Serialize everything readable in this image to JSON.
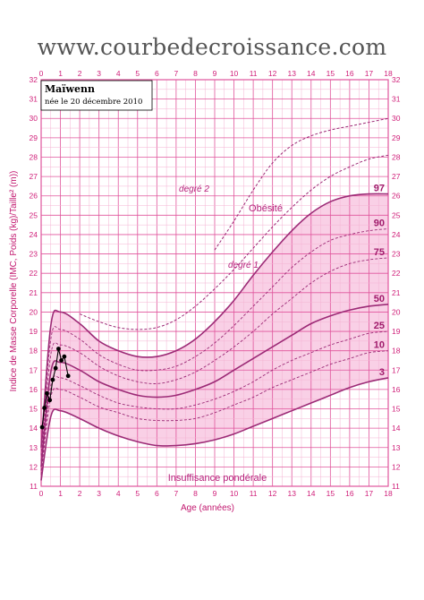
{
  "header": {
    "site_url": "www.courbedecroissance.com"
  },
  "patient": {
    "name": "Maïwenn",
    "birth": "née le 20 décembre 2010"
  },
  "colors": {
    "grid": "#e0559c",
    "grid_minor": "#f4b3d3",
    "curve": "#9c2a76",
    "band": "#f8c8e2",
    "point": "#000000"
  },
  "chart_data": {
    "type": "line",
    "title": "",
    "xlabel": "Age (années)",
    "ylabel": "Indice de Masse Corporelle (IMC, Poids (kg)/Taille² (m))",
    "xlim": [
      0,
      18
    ],
    "ylim": [
      11,
      32
    ],
    "x_ticks": [
      0,
      1,
      2,
      3,
      4,
      5,
      6,
      7,
      8,
      9,
      10,
      11,
      12,
      13,
      14,
      15,
      16,
      17,
      18
    ],
    "y_ticks": [
      11,
      12,
      13,
      14,
      15,
      16,
      17,
      18,
      19,
      20,
      21,
      22,
      23,
      24,
      25,
      26,
      27,
      28,
      29,
      30,
      31,
      32
    ],
    "zone_labels": {
      "obesity": "Obésité",
      "degree1": "degré 1",
      "degree2": "degré 2",
      "underweight": "Insuffisance pondérale"
    },
    "series": [
      {
        "name": "97",
        "x": [
          0,
          0.5,
          1,
          2,
          3,
          4,
          5,
          6,
          7,
          8,
          9,
          10,
          11,
          12,
          13,
          14,
          15,
          16,
          17,
          18
        ],
        "values": [
          13,
          19.3,
          20,
          19.4,
          18.5,
          18,
          17.7,
          17.7,
          18,
          18.6,
          19.5,
          20.6,
          21.9,
          23.1,
          24.2,
          25.1,
          25.7,
          26,
          26.1,
          26.1
        ]
      },
      {
        "name": "90",
        "x": [
          0,
          0.5,
          1,
          2,
          3,
          4,
          5,
          6,
          7,
          8,
          9,
          10,
          11,
          12,
          13,
          14,
          15,
          16,
          17,
          18
        ],
        "values": [
          12.6,
          18.6,
          19.1,
          18.6,
          17.8,
          17.3,
          17,
          17,
          17.2,
          17.7,
          18.4,
          19.3,
          20.3,
          21.3,
          22.3,
          23.1,
          23.7,
          24,
          24.2,
          24.3
        ]
      },
      {
        "name": "75",
        "x": [
          0,
          0.5,
          1,
          2,
          3,
          4,
          5,
          6,
          7,
          8,
          9,
          10,
          11,
          12,
          13,
          14,
          15,
          16,
          17,
          18
        ],
        "values": [
          12.3,
          17.8,
          18.3,
          17.9,
          17.2,
          16.7,
          16.4,
          16.3,
          16.5,
          16.9,
          17.5,
          18.2,
          19,
          19.9,
          20.7,
          21.5,
          22.1,
          22.5,
          22.7,
          22.8
        ]
      },
      {
        "name": "50",
        "x": [
          0,
          0.5,
          1,
          2,
          3,
          4,
          5,
          6,
          7,
          8,
          9,
          10,
          11,
          12,
          13,
          14,
          15,
          16,
          17,
          18
        ],
        "values": [
          12,
          16.9,
          17.4,
          17,
          16.4,
          16,
          15.7,
          15.6,
          15.7,
          16,
          16.4,
          17,
          17.6,
          18.2,
          18.8,
          19.4,
          19.8,
          20.1,
          20.3,
          20.4
        ]
      },
      {
        "name": "25",
        "x": [
          0,
          0.5,
          1,
          2,
          3,
          4,
          5,
          6,
          7,
          8,
          9,
          10,
          11,
          12,
          13,
          14,
          15,
          16,
          17,
          18
        ],
        "values": [
          11.8,
          16.2,
          16.6,
          16.2,
          15.7,
          15.3,
          15.1,
          15,
          15,
          15.2,
          15.5,
          15.9,
          16.4,
          17,
          17.5,
          17.9,
          18.3,
          18.6,
          18.9,
          19
        ]
      },
      {
        "name": "10",
        "x": [
          0,
          0.5,
          1,
          2,
          3,
          4,
          5,
          6,
          7,
          8,
          9,
          10,
          11,
          12,
          13,
          14,
          15,
          16,
          17,
          18
        ],
        "values": [
          11.6,
          15.6,
          16,
          15.6,
          15.1,
          14.8,
          14.5,
          14.4,
          14.4,
          14.5,
          14.8,
          15.2,
          15.6,
          16.1,
          16.5,
          16.9,
          17.3,
          17.6,
          17.9,
          18
        ]
      },
      {
        "name": "3",
        "x": [
          0,
          0.5,
          1,
          2,
          3,
          4,
          5,
          6,
          7,
          8,
          9,
          10,
          11,
          12,
          13,
          14,
          15,
          16,
          17,
          18
        ],
        "values": [
          11.3,
          14.6,
          14.9,
          14.5,
          14,
          13.6,
          13.3,
          13.1,
          13.1,
          13.2,
          13.4,
          13.7,
          14.1,
          14.5,
          14.9,
          15.3,
          15.7,
          16.1,
          16.4,
          16.6
        ]
      },
      {
        "name": "degré 1",
        "x": [
          2,
          3,
          4,
          5,
          6,
          7,
          8,
          9,
          10,
          11,
          12,
          13,
          14,
          15,
          16,
          17,
          18
        ],
        "values": [
          19.9,
          19.5,
          19.2,
          19.1,
          19.2,
          19.6,
          20.3,
          21.2,
          22.2,
          23.3,
          24.4,
          25.4,
          26.3,
          27,
          27.5,
          27.9,
          28.1
        ]
      },
      {
        "name": "degré 2",
        "x": [
          9,
          10,
          11,
          12,
          13,
          14,
          15,
          16,
          17,
          18
        ],
        "values": [
          23.2,
          24.7,
          26.3,
          27.7,
          28.6,
          29.1,
          29.4,
          29.6,
          29.8,
          30
        ]
      },
      {
        "name": "Maïwenn",
        "x": [
          0.05,
          0.17,
          0.3,
          0.45,
          0.6,
          0.75,
          0.9,
          1.05,
          1.2,
          1.4
        ],
        "values": [
          14.05,
          15.05,
          15.8,
          15.45,
          16.5,
          17.1,
          18.1,
          17.5,
          17.7,
          16.7
        ]
      }
    ]
  }
}
